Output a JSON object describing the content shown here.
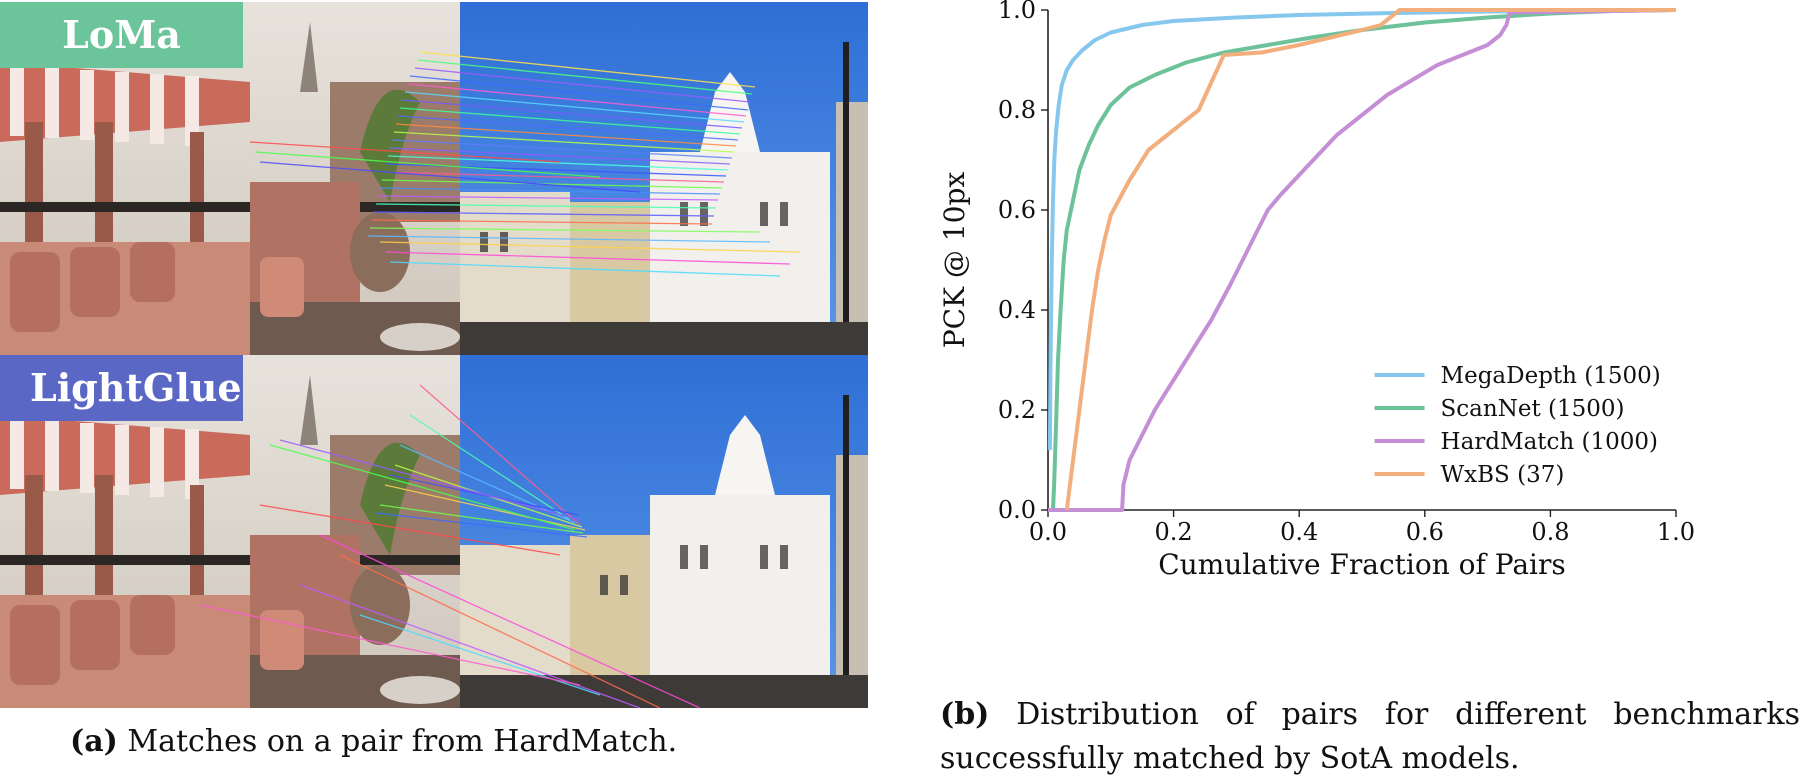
{
  "figure_a": {
    "badge_top": "LoMa",
    "badge_bottom": "LightGlue",
    "caption_label": "(a)",
    "caption_text": "Matches on a pair from HardMatch.",
    "colors": {
      "loma": "#6cc49a",
      "lightglue": "#5b67c4"
    }
  },
  "figure_b": {
    "caption_label": "(b)",
    "caption_text": "Distribution of pairs for different benchmarks successfully matched by SotA models."
  },
  "chart_data": {
    "type": "line",
    "xlabel": "Cumulative Fraction of Pairs",
    "ylabel": "PCK @ 10px",
    "xlim": [
      0.0,
      1.0
    ],
    "ylim": [
      0.0,
      1.0
    ],
    "xticks": [
      "0.0",
      "0.2",
      "0.4",
      "0.6",
      "0.8",
      "1.0"
    ],
    "yticks": [
      "0.0",
      "0.2",
      "0.4",
      "0.6",
      "0.8",
      "1.0"
    ],
    "grid": false,
    "legend_position": "bottom-right",
    "series": [
      {
        "name": "MegaDepth (1500)",
        "color": "#86c7ee",
        "x": [
          0.003,
          0.004,
          0.006,
          0.008,
          0.01,
          0.013,
          0.017,
          0.022,
          0.03,
          0.04,
          0.055,
          0.075,
          0.1,
          0.15,
          0.2,
          0.3,
          0.4,
          0.55,
          0.7,
          0.8,
          0.9,
          1.0
        ],
        "y": [
          0.12,
          0.3,
          0.5,
          0.62,
          0.7,
          0.76,
          0.81,
          0.85,
          0.88,
          0.9,
          0.92,
          0.94,
          0.955,
          0.97,
          0.978,
          0.985,
          0.99,
          0.994,
          0.997,
          0.998,
          0.999,
          1.0
        ]
      },
      {
        "name": "ScanNet (1500)",
        "color": "#6dc299",
        "x": [
          0.008,
          0.01,
          0.013,
          0.016,
          0.02,
          0.025,
          0.03,
          0.04,
          0.05,
          0.065,
          0.08,
          0.1,
          0.13,
          0.17,
          0.22,
          0.28,
          0.35,
          0.42,
          0.5,
          0.6,
          0.7,
          0.8,
          0.9,
          1.0
        ],
        "y": [
          0.0,
          0.06,
          0.18,
          0.3,
          0.4,
          0.5,
          0.56,
          0.62,
          0.68,
          0.73,
          0.77,
          0.81,
          0.845,
          0.87,
          0.895,
          0.915,
          0.93,
          0.945,
          0.96,
          0.975,
          0.985,
          0.993,
          0.998,
          1.0
        ]
      },
      {
        "name": "HardMatch (1000)",
        "color": "#c58fd6",
        "x": [
          0.0,
          0.118,
          0.12,
          0.13,
          0.15,
          0.17,
          0.19,
          0.21,
          0.23,
          0.26,
          0.29,
          0.31,
          0.33,
          0.35,
          0.37,
          0.4,
          0.43,
          0.46,
          0.5,
          0.54,
          0.58,
          0.62,
          0.66,
          0.7,
          0.72,
          0.73,
          0.735,
          1.0
        ],
        "y": [
          0.0,
          0.0,
          0.05,
          0.1,
          0.15,
          0.2,
          0.24,
          0.28,
          0.32,
          0.38,
          0.45,
          0.5,
          0.55,
          0.6,
          0.63,
          0.67,
          0.71,
          0.75,
          0.79,
          0.83,
          0.86,
          0.89,
          0.91,
          0.93,
          0.95,
          0.97,
          0.995,
          1.0
        ]
      },
      {
        "name": "WxBS (37)",
        "color": "#f2ae7d",
        "x": [
          0.03,
          0.04,
          0.05,
          0.06,
          0.07,
          0.08,
          0.09,
          0.1,
          0.13,
          0.16,
          0.2,
          0.24,
          0.28,
          0.34,
          0.4,
          0.45,
          0.5,
          0.53,
          0.56,
          0.6,
          1.0
        ],
        "y": [
          0.0,
          0.1,
          0.2,
          0.3,
          0.4,
          0.48,
          0.54,
          0.59,
          0.66,
          0.72,
          0.76,
          0.8,
          0.91,
          0.915,
          0.93,
          0.945,
          0.96,
          0.97,
          1.0,
          1.0,
          1.0
        ]
      }
    ]
  }
}
